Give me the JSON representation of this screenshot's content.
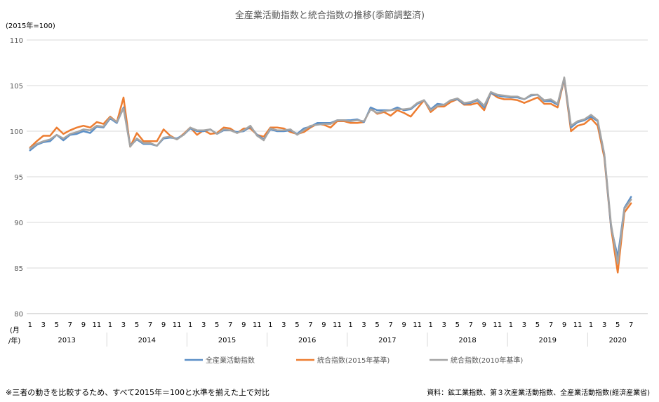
{
  "chart_data": {
    "type": "line",
    "title": "全産業活動指数と統合指数の推移(季節調整済)",
    "unit_label": "(2015年=100)",
    "axis_row_label_month": "(月",
    "axis_row_label_year": "/年)",
    "ylim": [
      80,
      110
    ],
    "yticks": [
      80,
      85,
      90,
      95,
      100,
      105,
      110
    ],
    "grid": true,
    "legend_position": "bottom",
    "years": [
      "2013",
      "2014",
      "2015",
      "2016",
      "2017",
      "2018",
      "2019",
      "2020"
    ],
    "month_tick_labels": [
      "1",
      "3",
      "5",
      "7",
      "9",
      "11"
    ],
    "month_tick_labels_2020": [
      "1",
      "3",
      "5",
      "7"
    ],
    "series": [
      {
        "name": "全産業活動指数",
        "color": "#5b8fc7",
        "values": [
          97.9,
          98.5,
          98.8,
          98.9,
          99.6,
          99.0,
          99.6,
          99.7,
          100.0,
          99.8,
          100.5,
          100.4,
          101.4,
          100.9,
          102.6,
          98.4,
          99.1,
          98.6,
          98.6,
          98.4,
          99.2,
          99.3,
          99.2,
          99.6,
          100.3,
          100.0,
          100.0,
          100.2,
          99.7,
          100.1,
          100.1,
          99.9,
          100.0,
          100.5,
          99.6,
          99.1,
          100.2,
          100.0,
          100.0,
          100.1,
          99.7,
          100.3,
          100.5,
          100.9,
          100.9,
          100.9,
          101.2,
          101.2,
          101.2,
          101.3,
          101.0,
          102.6,
          102.3,
          102.3,
          102.3,
          102.6,
          102.3,
          102.4,
          103.0,
          103.4,
          102.4,
          103.0,
          102.9,
          103.4,
          103.5,
          103.0,
          103.1,
          103.4,
          102.6,
          104.2,
          103.9,
          103.8,
          103.7,
          103.7,
          103.5,
          103.9,
          104.0,
          103.3,
          103.3,
          102.9,
          105.8,
          100.4,
          101.0,
          101.2,
          101.6,
          101.1,
          97.4,
          89.5,
          86.2,
          91.6,
          92.8
        ]
      },
      {
        "name": "統合指数(2015年基準)",
        "color": "#ed7d31",
        "values": [
          98.2,
          98.9,
          99.5,
          99.5,
          100.4,
          99.7,
          100.1,
          100.4,
          100.6,
          100.4,
          101.0,
          100.8,
          101.6,
          101.0,
          103.7,
          98.3,
          99.8,
          98.9,
          98.9,
          98.9,
          100.2,
          99.5,
          99.1,
          99.7,
          100.4,
          99.6,
          100.1,
          99.7,
          99.8,
          100.4,
          100.3,
          99.8,
          100.3,
          100.3,
          99.6,
          99.4,
          100.4,
          100.4,
          100.3,
          99.9,
          99.7,
          99.9,
          100.4,
          100.8,
          100.7,
          100.4,
          101.1,
          101.1,
          100.9,
          100.9,
          101.0,
          102.5,
          101.9,
          102.1,
          101.7,
          102.3,
          102.0,
          101.6,
          102.5,
          103.4,
          102.1,
          102.7,
          102.7,
          103.2,
          103.5,
          102.9,
          102.9,
          103.1,
          102.3,
          104.2,
          103.7,
          103.5,
          103.5,
          103.4,
          103.1,
          103.4,
          103.7,
          103.0,
          103.0,
          102.6,
          105.7,
          100.0,
          100.6,
          100.8,
          101.4,
          100.6,
          97.1,
          89.4,
          84.5,
          91.1,
          92.1
        ]
      },
      {
        "name": "統合指数(2010年基準)",
        "color": "#a5a5a5",
        "values": [
          98.1,
          98.6,
          98.9,
          99.1,
          99.6,
          99.2,
          99.7,
          99.9,
          100.2,
          100.1,
          100.6,
          100.5,
          101.5,
          101.0,
          102.5,
          98.3,
          99.2,
          98.7,
          98.7,
          98.4,
          99.3,
          99.4,
          99.1,
          99.6,
          100.4,
          100.1,
          100.1,
          100.2,
          99.7,
          100.2,
          100.1,
          99.8,
          100.1,
          100.6,
          99.5,
          99.0,
          100.3,
          100.1,
          100.1,
          100.2,
          99.6,
          100.1,
          100.6,
          100.7,
          100.8,
          100.8,
          101.2,
          101.2,
          101.1,
          101.2,
          101.1,
          102.4,
          102.0,
          102.2,
          102.3,
          102.4,
          102.4,
          102.5,
          103.1,
          103.4,
          102.3,
          102.8,
          102.9,
          103.4,
          103.6,
          103.1,
          103.2,
          103.5,
          102.8,
          104.3,
          104.0,
          103.9,
          103.8,
          103.8,
          103.5,
          104.0,
          104.0,
          103.4,
          103.5,
          103.0,
          105.9,
          100.6,
          101.1,
          101.3,
          101.8,
          101.2,
          97.5,
          89.8,
          85.5,
          91.5,
          92.5
        ]
      }
    ]
  },
  "footer": {
    "note": "※三者の動きを比較するため、すべて2015年＝100と水準を揃えた上で対比",
    "source": "資料：鉱工業指数、第３次産業活動指数、全産業活動指数(経済産業省)"
  }
}
